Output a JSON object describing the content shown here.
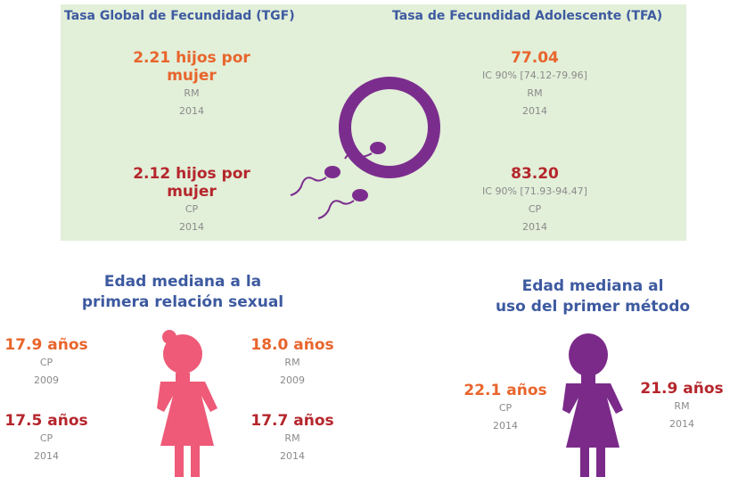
{
  "top": {
    "left_title": "Tasa Global de Fecundidad (TGF)",
    "right_title": "Tasa de Fecundidad Adolescente (TFA)",
    "tgf": [
      {
        "value": "2.21 hijos por mujer",
        "group": "RM",
        "year": "2014"
      },
      {
        "value": "2.12 hijos por mujer",
        "group": "CP",
        "year": "2014"
      }
    ],
    "tfa": [
      {
        "value": "77.04",
        "ci": "IC 90% [74.12-79.96]",
        "group": "RM",
        "year": "2014"
      },
      {
        "value": "83.20",
        "ci": "IC 90% [71.93-94.47]",
        "group": "CP",
        "year": "2014"
      }
    ]
  },
  "first_sex": {
    "title": [
      "Edad mediana  a la",
      "primera relación sexual"
    ],
    "items": [
      {
        "value": "17.9 años",
        "group": "CP",
        "year": "2009"
      },
      {
        "value": "18.0 años",
        "group": "RM",
        "year": "2009"
      },
      {
        "value": "17.5 años",
        "group": "CP",
        "year": "2014"
      },
      {
        "value": "17.7 años",
        "group": "RM",
        "year": "2014"
      }
    ]
  },
  "first_method": {
    "title": [
      "Edad mediana  al",
      "uso del primer método"
    ],
    "items": [
      {
        "value": "22.1 años",
        "group": "CP",
        "year": "2014"
      },
      {
        "value": "21.9 años",
        "group": "RM",
        "year": "2014"
      }
    ]
  }
}
